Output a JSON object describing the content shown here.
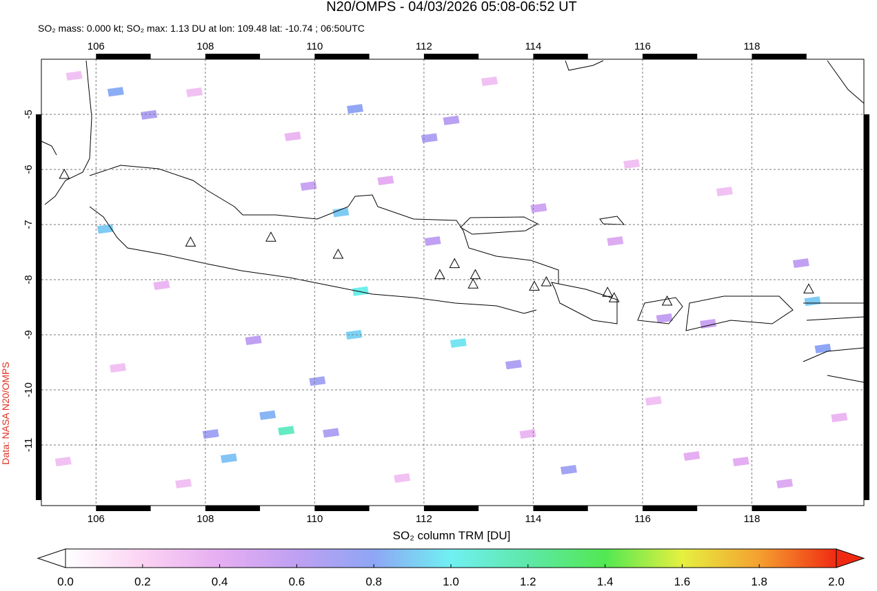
{
  "title": "N20/OMPS - 04/03/2026 05:08-06:52 UT",
  "subtitle": "SO₂ mass: 0.000 kt; SO₂ max: 1.13 DU at lon: 109.48 lat: -10.74 ; 06:50UTC",
  "credit": "Data: NASA N20/OMPS",
  "map": {
    "xlim": [
      105,
      120.05
    ],
    "ylim": [
      -12.1,
      -4
    ],
    "xticks": [
      106,
      108,
      110,
      112,
      114,
      116,
      118
    ],
    "yticks": [
      -5,
      -6,
      -7,
      -8,
      -9,
      -10,
      -11
    ],
    "pixels": {
      "lon": [
        109.48,
        112.63,
        110.84,
        110.48,
        110.72,
        110.74,
        106.36,
        106.17,
        108.43,
        109.14,
        119.11,
        119.3,
        108.1,
        110.05,
        110.3,
        112.1,
        112.5,
        113.64,
        114.65,
        106.97,
        109.89,
        112.16,
        108.88,
        116.4,
        117.2,
        118.9,
        114.1,
        115.5,
        111.3,
        107.2,
        105.6,
        107.8,
        109.6,
        113.2,
        115.8,
        117.5,
        119.6,
        117.8,
        116.2,
        113.9,
        111.6,
        106.4,
        105.4,
        107.6,
        118.6,
        116.9
      ],
      "lat": [
        -10.74,
        -9.15,
        -8.21,
        -6.78,
        -9.0,
        -4.9,
        -4.59,
        -7.08,
        -11.24,
        -10.46,
        -8.39,
        -9.25,
        -10.8,
        -9.84,
        -10.78,
        -5.43,
        -5.11,
        -9.54,
        -11.45,
        -5.01,
        -6.3,
        -7.3,
        -9.1,
        -8.7,
        -8.8,
        -7.7,
        -6.7,
        -7.3,
        -6.2,
        -8.1,
        -4.3,
        -4.6,
        -5.4,
        -4.4,
        -5.9,
        -6.4,
        -10.5,
        -11.3,
        -10.2,
        -10.8,
        -11.6,
        -9.6,
        -11.3,
        -11.7,
        -11.7,
        -11.2
      ],
      "values": [
        1.13,
        0.97,
        1.02,
        0.9,
        0.92,
        0.78,
        0.82,
        0.9,
        0.88,
        0.84,
        0.9,
        0.8,
        0.72,
        0.72,
        0.66,
        0.66,
        0.62,
        0.66,
        0.72,
        0.66,
        0.55,
        0.6,
        0.6,
        0.58,
        0.55,
        0.6,
        0.52,
        0.45,
        0.4,
        0.35,
        0.3,
        0.3,
        0.35,
        0.3,
        0.3,
        0.3,
        0.35,
        0.4,
        0.3,
        0.35,
        0.3,
        0.3,
        0.3,
        0.3,
        0.45,
        0.4
      ]
    },
    "volcanoes": {
      "lon": [
        107.73,
        109.2,
        110.43,
        105.42,
        112.29,
        112.56,
        112.94,
        112.9,
        114.02,
        114.24,
        115.36,
        115.48,
        116.45,
        119.04
      ],
      "lat": [
        -7.33,
        -7.24,
        -7.55,
        -6.1,
        -7.92,
        -7.72,
        -7.92,
        -8.09,
        -8.13,
        -8.05,
        -8.24,
        -8.34,
        -8.4,
        -8.18
      ]
    }
  },
  "colorbar": {
    "label": "SO₂ column TRM [DU]",
    "lim": [
      0,
      2
    ],
    "ticks": [
      {
        "value": 0,
        "label": "0.0"
      },
      0.2,
      0.4,
      0.6,
      0.8,
      {
        "value": 1,
        "label": "1.0"
      },
      1.2,
      1.4,
      1.6,
      1.8,
      {
        "value": 2,
        "label": "2.0"
      }
    ],
    "colors": [
      "#ffffff",
      "#fbd3f3",
      "#e6aef2",
      "#bfa0f2",
      "#8ea6f5",
      "#70f0f2",
      "#5ee8a8",
      "#52e852",
      "#e6f040",
      "#f5a030",
      "#f02a12"
    ]
  }
}
